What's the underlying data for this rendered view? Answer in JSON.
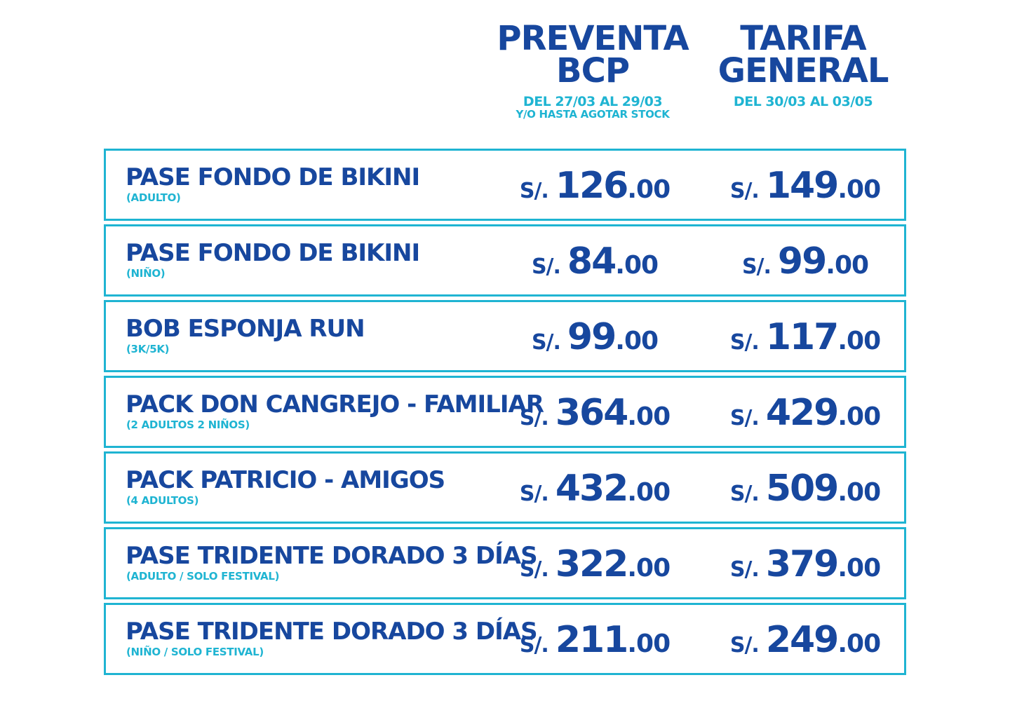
{
  "colors": {
    "navy": "#17479e",
    "cyan": "#1fb4d2",
    "background": "#ffffff"
  },
  "headers": {
    "preventa": {
      "line1": "PREVENTA",
      "line2": "BCP",
      "date": "DEL 27/03 AL 29/03",
      "sub": "Y/O HASTA AGOTAR STOCK"
    },
    "tarifa": {
      "line1": "TARIFA",
      "line2": "GENERAL",
      "date": "DEL 30/03 AL 03/05"
    }
  },
  "rows": [
    {
      "name": "PASE FONDO DE BIKINI",
      "note": "(ADULTO)",
      "preventa": {
        "currency": "S/.",
        "int": "126",
        "dec": ".00"
      },
      "tarifa": {
        "currency": "S/.",
        "int": "149",
        "dec": ".00"
      }
    },
    {
      "name": "PASE FONDO DE BIKINI",
      "note": "(NIÑO)",
      "preventa": {
        "currency": "S/.",
        "int": "84",
        "dec": ".00"
      },
      "tarifa": {
        "currency": "S/.",
        "int": "99",
        "dec": ".00"
      }
    },
    {
      "name": "BOB ESPONJA RUN",
      "note": "(3K/5K)",
      "preventa": {
        "currency": "S/.",
        "int": "99",
        "dec": ".00"
      },
      "tarifa": {
        "currency": "S/.",
        "int": "117",
        "dec": ".00"
      }
    },
    {
      "name": "PACK DON CANGREJO - FAMILIAR",
      "note": "(2 ADULTOS 2 NIÑOS)",
      "preventa": {
        "currency": "S/.",
        "int": "364",
        "dec": ".00"
      },
      "tarifa": {
        "currency": "S/.",
        "int": "429",
        "dec": ".00"
      }
    },
    {
      "name": "PACK PATRICIO - AMIGOS",
      "note": "(4 ADULTOS)",
      "preventa": {
        "currency": "S/.",
        "int": "432",
        "dec": ".00"
      },
      "tarifa": {
        "currency": "S/.",
        "int": "509",
        "dec": ".00"
      }
    },
    {
      "name": "PASE TRIDENTE DORADO 3 DÍAS",
      "note": "(ADULTO / SOLO FESTIVAL)",
      "preventa": {
        "currency": "S/.",
        "int": "322",
        "dec": ".00"
      },
      "tarifa": {
        "currency": "S/.",
        "int": "379",
        "dec": ".00"
      }
    },
    {
      "name": "PASE TRIDENTE DORADO 3 DÍAS",
      "note": "(NIÑO / SOLO FESTIVAL)",
      "preventa": {
        "currency": "S/.",
        "int": "211",
        "dec": ".00"
      },
      "tarifa": {
        "currency": "S/.",
        "int": "249",
        "dec": ".00"
      }
    }
  ]
}
